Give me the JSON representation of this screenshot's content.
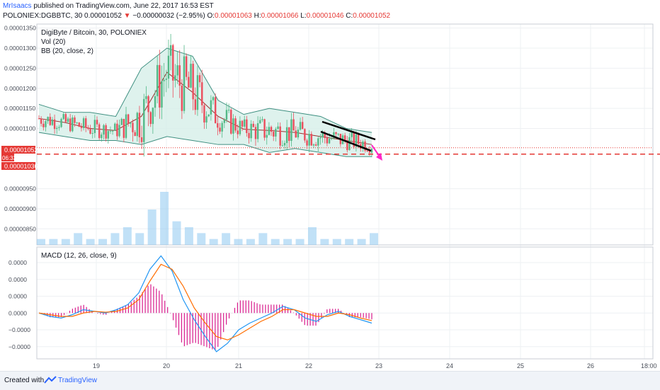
{
  "header": {
    "author": "MrIsaacs",
    "published": "published on TradingView.com, June 22, 2017 16:53 EST",
    "symbol": "POLONIEX:DGBBTC, 30",
    "last": "0.00001052",
    "arrow": "▼",
    "change": "−0.00000032 (−2.95%)",
    "o_label": "O:",
    "o_val": "0.00001063",
    "h_label": "H:",
    "h_val": "0.00001066",
    "l_label": "L:",
    "l_val": "0.00001046",
    "c_label": "C:",
    "c_val": "0.00001052"
  },
  "legend": {
    "title": "DigiByte / Bitcoin, 30, POLONIEX",
    "vol": "Vol (20)",
    "bb": "BB (20, close, 2)",
    "macd": "MACD (12, 26, close, 9)"
  },
  "price_axis": {
    "ticks": [
      "0.00001350",
      "0.00001300",
      "0.00001250",
      "0.00001200",
      "0.00001150",
      "0.00001100",
      "0.00000950",
      "0.00000900",
      "0.00000850"
    ],
    "last_label": "0.00001052",
    "countdown": "06:33",
    "target_label": "0.00001036"
  },
  "macd_axis": {
    "ticks": [
      "0.0000",
      "0.0000",
      "0.0000",
      "0.0000",
      "−0.0000",
      "−0.0000"
    ]
  },
  "time_axis": {
    "ticks": [
      "19",
      "20",
      "21",
      "22",
      "23",
      "24",
      "25",
      "26",
      "18:00"
    ]
  },
  "footer": {
    "created": "Created with",
    "brand": "TradingView"
  },
  "colors": {
    "up": "#53b987",
    "down": "#eb4d5c",
    "bb_fill": "#d6efe8",
    "bb_band": "#3e8f80",
    "bb_mid": "#9c2f2f",
    "volume": "#8ec9f0",
    "macd": "#2196f3",
    "signal": "#ff6d00",
    "hist": "#d81b8c",
    "target": "#e53935",
    "arrow": "#ff26c8",
    "channel": "#000000"
  },
  "chart_data": [
    {
      "type": "candlestick",
      "title": "DigiByte / Bitcoin, 30, POLONIEX",
      "ylim": [
        8.1e-06,
        1.36e-05
      ],
      "x": [
        "19",
        "20",
        "21",
        "22",
        "23"
      ],
      "bb_mid": [
        1.125e-05,
        1.115e-05,
        1.1e-05,
        1.095e-05,
        1.13e-05,
        1.24e-05,
        1.19e-05,
        1.13e-05,
        1.098e-05,
        1.095e-05,
        1.09e-05,
        1.08e-05,
        1.07e-05,
        1.06e-05
      ],
      "bb_upper": [
        1.16e-05,
        1.14e-05,
        1.14e-05,
        1.13e-05,
        1.25e-05,
        1.3e-05,
        1.28e-05,
        1.17e-05,
        1.135e-05,
        1.15e-05,
        1.14e-05,
        1.13e-05,
        1.1e-05,
        1.09e-05
      ],
      "bb_lower": [
        1.09e-05,
        1.08e-05,
        1.07e-05,
        1.07e-05,
        1.06e-05,
        1.08e-05,
        1.07e-05,
        1.06e-05,
        1.06e-05,
        1.04e-05,
        1.05e-05,
        1.04e-05,
        1.03e-05,
        1.03e-05
      ],
      "last_price": 1.052e-05,
      "target": 1.036e-05
    },
    {
      "type": "bar",
      "title": "Vol (20)",
      "values": [
        1,
        1,
        1,
        2,
        1,
        1,
        2,
        3,
        2,
        6,
        9,
        4,
        3,
        2,
        1,
        2,
        1,
        1,
        2,
        1,
        1,
        1,
        3,
        1,
        1,
        1,
        1,
        2
      ]
    },
    {
      "type": "line",
      "title": "MACD (12, 26, close, 9)",
      "macd": [
        0,
        -0.2,
        -0.3,
        -0.1,
        0.2,
        0.1,
        0,
        0.2,
        0.5,
        1.2,
        2.6,
        3.4,
        2.5,
        0.8,
        -0.4,
        -1.4,
        -2.3,
        -1.8,
        -1.0,
        -0.6,
        -0.3,
        0,
        0.4,
        0.2,
        -0.3,
        -0.5,
        -0.1,
        0.1,
        -0.2,
        -0.4,
        -0.6
      ],
      "signal": [
        0,
        -0.1,
        -0.2,
        -0.2,
        0,
        0.1,
        0.05,
        0.1,
        0.3,
        0.8,
        1.9,
        2.9,
        2.6,
        1.6,
        0.3,
        -0.6,
        -1.4,
        -1.6,
        -1.3,
        -0.9,
        -0.5,
        -0.2,
        0.2,
        0.2,
        0,
        -0.2,
        -0.2,
        0,
        -0.1,
        -0.3,
        -0.45
      ],
      "ylim": [
        -2.6,
        3.8
      ]
    }
  ]
}
